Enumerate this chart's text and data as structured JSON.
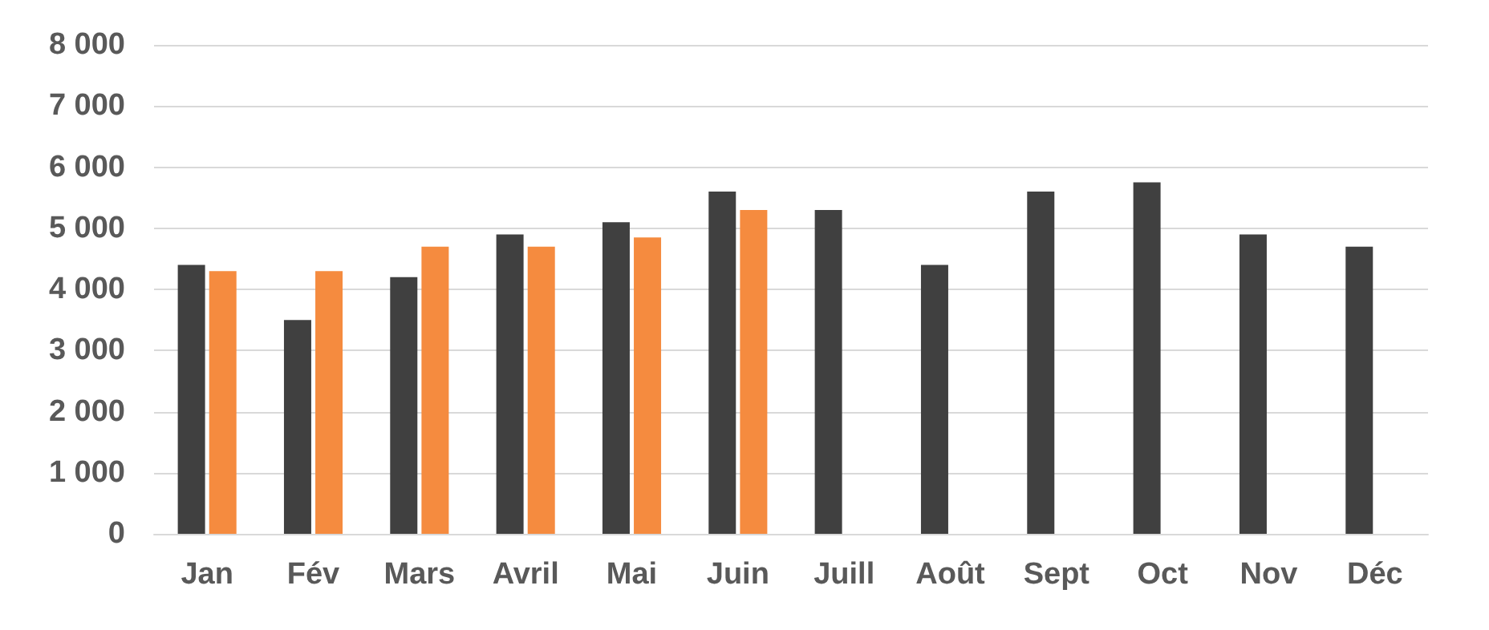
{
  "chart_data": {
    "type": "bar",
    "categories": [
      "Jan",
      "Fév",
      "Mars",
      "Avril",
      "Mai",
      "Juin",
      "Juill",
      "Août",
      "Sept",
      "Oct",
      "Nov",
      "Déc"
    ],
    "series": [
      {
        "color": "#404040",
        "values": [
          4400,
          3500,
          4200,
          4900,
          5100,
          5600,
          5300,
          4400,
          5600,
          5750,
          4900,
          4700
        ]
      },
      {
        "color": "#f58b3f",
        "values": [
          4300,
          4300,
          4700,
          4700,
          4850,
          5300,
          null,
          null,
          null,
          null,
          null,
          null
        ]
      }
    ],
    "ylim": [
      0,
      8000
    ],
    "yticks": [
      {
        "value": 0,
        "label": "0"
      },
      {
        "value": 1000,
        "label": "1 000"
      },
      {
        "value": 2000,
        "label": "2 000"
      },
      {
        "value": 3000,
        "label": "3 000"
      },
      {
        "value": 4000,
        "label": "4 000"
      },
      {
        "value": 5000,
        "label": "5 000"
      },
      {
        "value": 6000,
        "label": "6 000"
      },
      {
        "value": 7000,
        "label": "7 000"
      },
      {
        "value": 8000,
        "label": "8 000"
      }
    ],
    "grid": "y"
  }
}
